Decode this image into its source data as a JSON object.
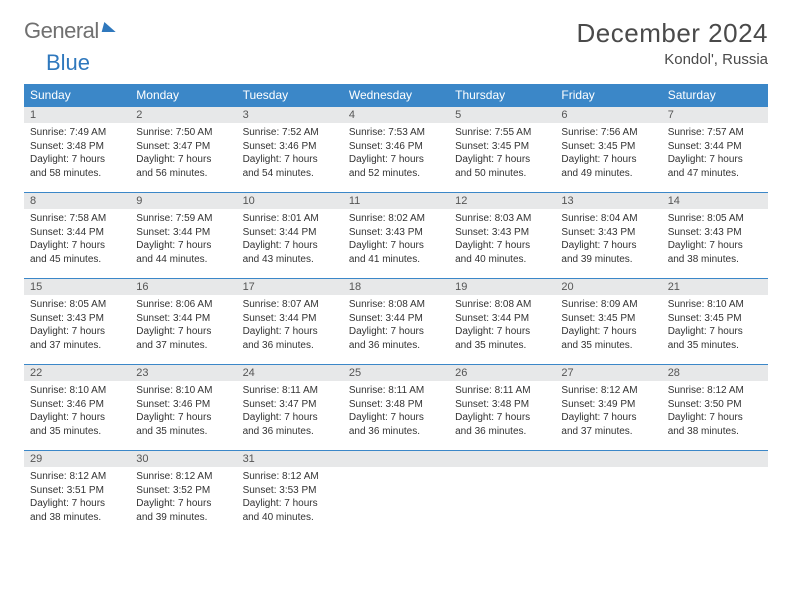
{
  "brand": {
    "part1": "General",
    "part2": "Blue"
  },
  "title": "December 2024",
  "location": "Kondol', Russia",
  "colors": {
    "header_bg": "#3b87c8",
    "header_text": "#ffffff",
    "daynum_bg": "#e7e8e9",
    "border": "#3b87c8",
    "title_text": "#4a4a4a",
    "body_text": "#333333"
  },
  "weekdays": [
    "Sunday",
    "Monday",
    "Tuesday",
    "Wednesday",
    "Thursday",
    "Friday",
    "Saturday"
  ],
  "weeks": [
    [
      {
        "n": "1",
        "sunrise": "7:49 AM",
        "sunset": "3:48 PM",
        "daylight": "7 hours and 58 minutes."
      },
      {
        "n": "2",
        "sunrise": "7:50 AM",
        "sunset": "3:47 PM",
        "daylight": "7 hours and 56 minutes."
      },
      {
        "n": "3",
        "sunrise": "7:52 AM",
        "sunset": "3:46 PM",
        "daylight": "7 hours and 54 minutes."
      },
      {
        "n": "4",
        "sunrise": "7:53 AM",
        "sunset": "3:46 PM",
        "daylight": "7 hours and 52 minutes."
      },
      {
        "n": "5",
        "sunrise": "7:55 AM",
        "sunset": "3:45 PM",
        "daylight": "7 hours and 50 minutes."
      },
      {
        "n": "6",
        "sunrise": "7:56 AM",
        "sunset": "3:45 PM",
        "daylight": "7 hours and 49 minutes."
      },
      {
        "n": "7",
        "sunrise": "7:57 AM",
        "sunset": "3:44 PM",
        "daylight": "7 hours and 47 minutes."
      }
    ],
    [
      {
        "n": "8",
        "sunrise": "7:58 AM",
        "sunset": "3:44 PM",
        "daylight": "7 hours and 45 minutes."
      },
      {
        "n": "9",
        "sunrise": "7:59 AM",
        "sunset": "3:44 PM",
        "daylight": "7 hours and 44 minutes."
      },
      {
        "n": "10",
        "sunrise": "8:01 AM",
        "sunset": "3:44 PM",
        "daylight": "7 hours and 43 minutes."
      },
      {
        "n": "11",
        "sunrise": "8:02 AM",
        "sunset": "3:43 PM",
        "daylight": "7 hours and 41 minutes."
      },
      {
        "n": "12",
        "sunrise": "8:03 AM",
        "sunset": "3:43 PM",
        "daylight": "7 hours and 40 minutes."
      },
      {
        "n": "13",
        "sunrise": "8:04 AM",
        "sunset": "3:43 PM",
        "daylight": "7 hours and 39 minutes."
      },
      {
        "n": "14",
        "sunrise": "8:05 AM",
        "sunset": "3:43 PM",
        "daylight": "7 hours and 38 minutes."
      }
    ],
    [
      {
        "n": "15",
        "sunrise": "8:05 AM",
        "sunset": "3:43 PM",
        "daylight": "7 hours and 37 minutes."
      },
      {
        "n": "16",
        "sunrise": "8:06 AM",
        "sunset": "3:44 PM",
        "daylight": "7 hours and 37 minutes."
      },
      {
        "n": "17",
        "sunrise": "8:07 AM",
        "sunset": "3:44 PM",
        "daylight": "7 hours and 36 minutes."
      },
      {
        "n": "18",
        "sunrise": "8:08 AM",
        "sunset": "3:44 PM",
        "daylight": "7 hours and 36 minutes."
      },
      {
        "n": "19",
        "sunrise": "8:08 AM",
        "sunset": "3:44 PM",
        "daylight": "7 hours and 35 minutes."
      },
      {
        "n": "20",
        "sunrise": "8:09 AM",
        "sunset": "3:45 PM",
        "daylight": "7 hours and 35 minutes."
      },
      {
        "n": "21",
        "sunrise": "8:10 AM",
        "sunset": "3:45 PM",
        "daylight": "7 hours and 35 minutes."
      }
    ],
    [
      {
        "n": "22",
        "sunrise": "8:10 AM",
        "sunset": "3:46 PM",
        "daylight": "7 hours and 35 minutes."
      },
      {
        "n": "23",
        "sunrise": "8:10 AM",
        "sunset": "3:46 PM",
        "daylight": "7 hours and 35 minutes."
      },
      {
        "n": "24",
        "sunrise": "8:11 AM",
        "sunset": "3:47 PM",
        "daylight": "7 hours and 36 minutes."
      },
      {
        "n": "25",
        "sunrise": "8:11 AM",
        "sunset": "3:48 PM",
        "daylight": "7 hours and 36 minutes."
      },
      {
        "n": "26",
        "sunrise": "8:11 AM",
        "sunset": "3:48 PM",
        "daylight": "7 hours and 36 minutes."
      },
      {
        "n": "27",
        "sunrise": "8:12 AM",
        "sunset": "3:49 PM",
        "daylight": "7 hours and 37 minutes."
      },
      {
        "n": "28",
        "sunrise": "8:12 AM",
        "sunset": "3:50 PM",
        "daylight": "7 hours and 38 minutes."
      }
    ],
    [
      {
        "n": "29",
        "sunrise": "8:12 AM",
        "sunset": "3:51 PM",
        "daylight": "7 hours and 38 minutes."
      },
      {
        "n": "30",
        "sunrise": "8:12 AM",
        "sunset": "3:52 PM",
        "daylight": "7 hours and 39 minutes."
      },
      {
        "n": "31",
        "sunrise": "8:12 AM",
        "sunset": "3:53 PM",
        "daylight": "7 hours and 40 minutes."
      },
      null,
      null,
      null,
      null
    ]
  ],
  "labels": {
    "sunrise": "Sunrise:",
    "sunset": "Sunset:",
    "daylight": "Daylight:"
  }
}
